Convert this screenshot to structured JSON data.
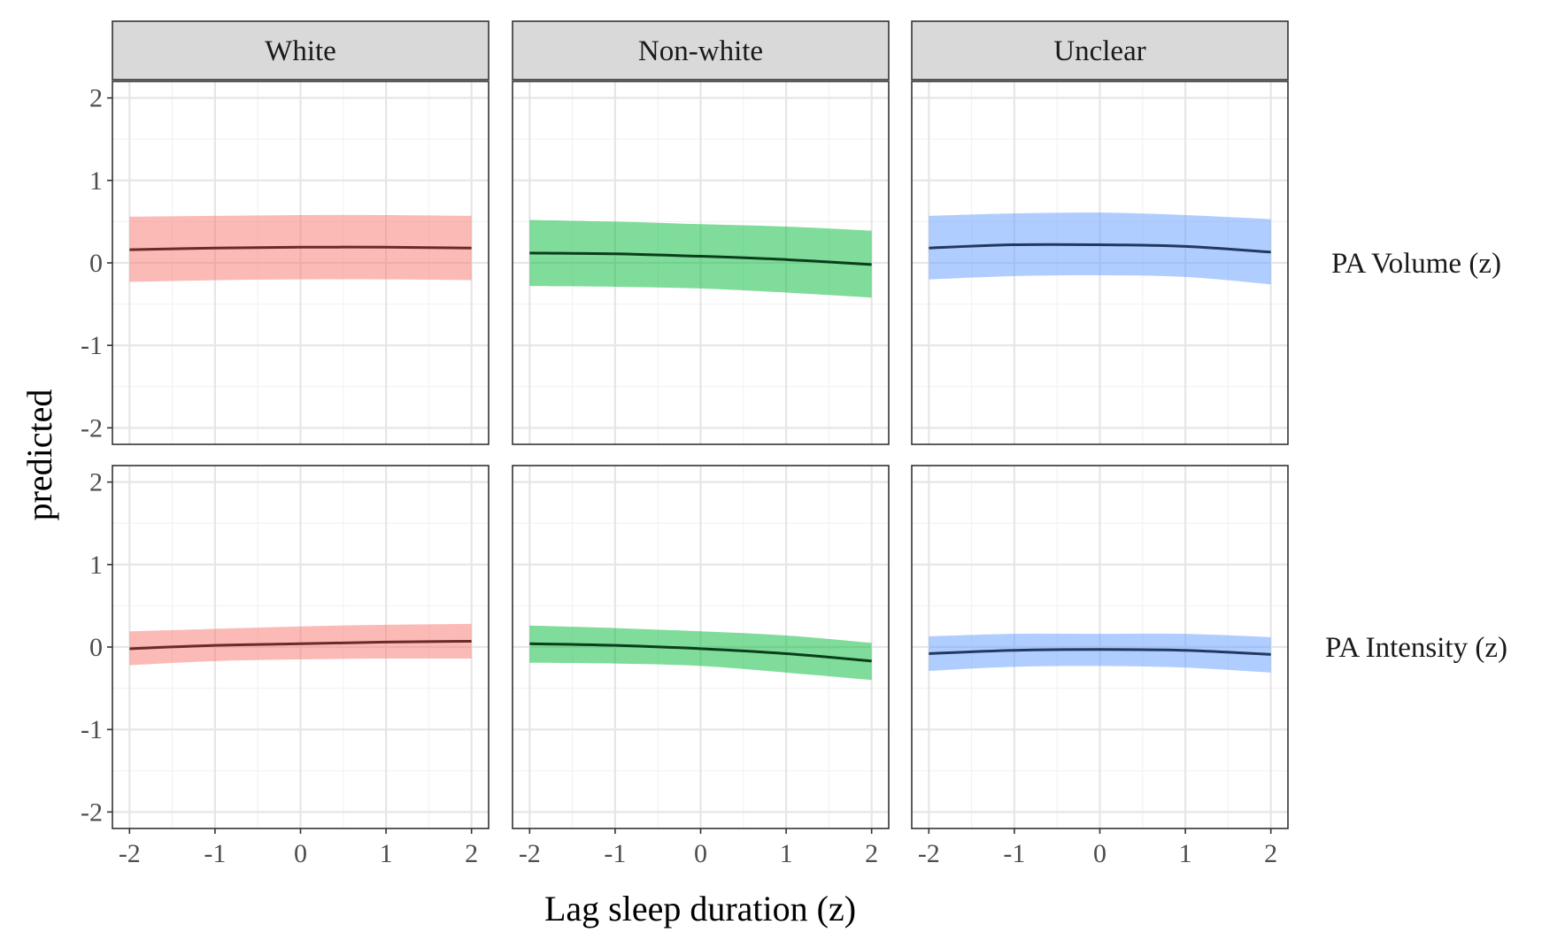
{
  "chart_data": {
    "type": "line",
    "xlabel": "Lag sleep duration (z)",
    "ylabel": "predicted",
    "xlim": [
      -2.2,
      2.2
    ],
    "ylim": [
      -2.2,
      2.2
    ],
    "x_ticks": [
      -2,
      -1,
      0,
      1,
      2
    ],
    "y_ticks": [
      -2,
      -1,
      0,
      1,
      2
    ],
    "x_tick_labels": [
      "-2",
      "-1",
      "0",
      "1",
      "2"
    ],
    "y_tick_labels": [
      "-2",
      "-1",
      "0",
      "1",
      "2"
    ],
    "grid": true,
    "columns": [
      {
        "label": "White",
        "fill": "#f8766d",
        "line": "#6b2a27"
      },
      {
        "label": "Non-white",
        "fill": "#00ba38",
        "line": "#0b3d1a"
      },
      {
        "label": "Unclear",
        "fill": "#619cff",
        "line": "#22385e"
      }
    ],
    "rows": [
      {
        "label": "PA Volume (z)"
      },
      {
        "label": "PA Intensity (z)"
      }
    ],
    "x": [
      -2,
      -1,
      0,
      1,
      2
    ],
    "panels": [
      {
        "row": 0,
        "col": 0,
        "fit": [
          0.16,
          0.18,
          0.19,
          0.19,
          0.18
        ],
        "lower": [
          -0.23,
          -0.21,
          -0.2,
          -0.2,
          -0.21
        ],
        "upper": [
          0.56,
          0.57,
          0.58,
          0.58,
          0.57
        ]
      },
      {
        "row": 0,
        "col": 1,
        "fit": [
          0.12,
          0.11,
          0.08,
          0.04,
          -0.02
        ],
        "lower": [
          -0.28,
          -0.29,
          -0.31,
          -0.36,
          -0.42
        ],
        "upper": [
          0.52,
          0.5,
          0.47,
          0.44,
          0.39
        ]
      },
      {
        "row": 0,
        "col": 2,
        "fit": [
          0.18,
          0.22,
          0.22,
          0.2,
          0.13
        ],
        "lower": [
          -0.2,
          -0.16,
          -0.15,
          -0.17,
          -0.26
        ],
        "upper": [
          0.57,
          0.6,
          0.61,
          0.58,
          0.53
        ]
      },
      {
        "row": 1,
        "col": 0,
        "fit": [
          -0.02,
          0.02,
          0.04,
          0.06,
          0.07
        ],
        "lower": [
          -0.22,
          -0.17,
          -0.15,
          -0.14,
          -0.14
        ],
        "upper": [
          0.19,
          0.22,
          0.25,
          0.27,
          0.28
        ]
      },
      {
        "row": 1,
        "col": 1,
        "fit": [
          0.04,
          0.02,
          -0.02,
          -0.08,
          -0.17
        ],
        "lower": [
          -0.19,
          -0.2,
          -0.23,
          -0.31,
          -0.4
        ],
        "upper": [
          0.26,
          0.23,
          0.19,
          0.14,
          0.05
        ]
      },
      {
        "row": 1,
        "col": 2,
        "fit": [
          -0.08,
          -0.04,
          -0.03,
          -0.04,
          -0.09
        ],
        "lower": [
          -0.29,
          -0.24,
          -0.23,
          -0.25,
          -0.31
        ],
        "upper": [
          0.13,
          0.16,
          0.16,
          0.16,
          0.12
        ]
      }
    ]
  }
}
